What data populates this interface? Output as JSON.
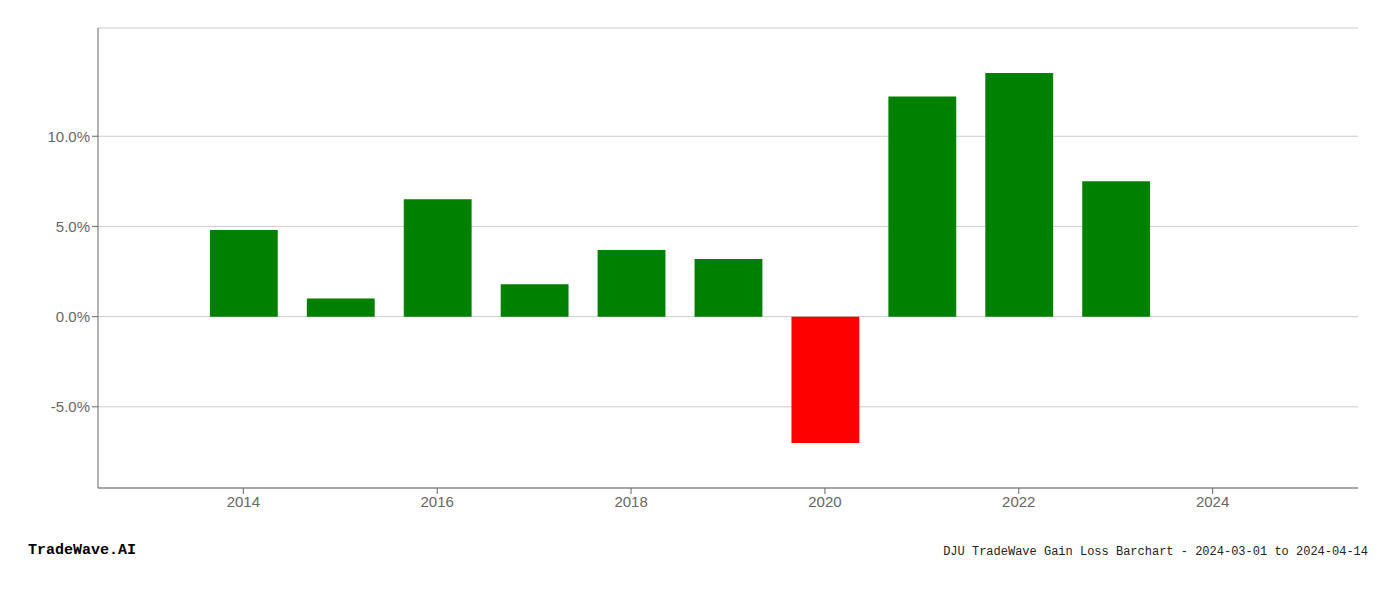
{
  "chart_data": {
    "type": "bar",
    "title": "DJU TradeWave Gain Loss Barchart - 2024-03-01 to 2024-04-14",
    "annotations": [
      "TradeWave.AI"
    ],
    "x": [
      2014,
      2015,
      2016,
      2017,
      2018,
      2019,
      2020,
      2021,
      2022,
      2023
    ],
    "values": [
      4.8,
      1.0,
      6.5,
      1.8,
      3.7,
      3.2,
      -7.0,
      12.2,
      13.5,
      7.5
    ],
    "colors": [
      "#008000",
      "#008000",
      "#008000",
      "#008000",
      "#008000",
      "#008000",
      "#ff0000",
      "#008000",
      "#008000",
      "#008000"
    ],
    "xlim": [
      2012.5,
      2025.5
    ],
    "xticks": [
      2014,
      2016,
      2018,
      2020,
      2022,
      2024
    ],
    "ylim": [
      -9.5,
      16
    ],
    "yticks": [
      {
        "value": -5.0,
        "label": "-5.0%"
      },
      {
        "value": 0.0,
        "label": "0.0%"
      },
      {
        "value": 5.0,
        "label": "5.0%"
      },
      {
        "value": 10.0,
        "label": "10.0%"
      }
    ],
    "grid": true
  }
}
